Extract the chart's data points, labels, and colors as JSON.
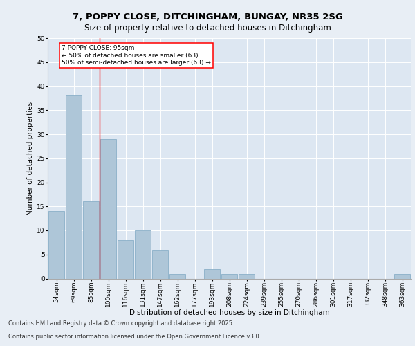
{
  "title_line1": "7, POPPY CLOSE, DITCHINGHAM, BUNGAY, NR35 2SG",
  "title_line2": "Size of property relative to detached houses in Ditchingham",
  "categories": [
    "54sqm",
    "69sqm",
    "85sqm",
    "100sqm",
    "116sqm",
    "131sqm",
    "147sqm",
    "162sqm",
    "177sqm",
    "193sqm",
    "208sqm",
    "224sqm",
    "239sqm",
    "255sqm",
    "270sqm",
    "286sqm",
    "301sqm",
    "317sqm",
    "332sqm",
    "348sqm",
    "363sqm"
  ],
  "values": [
    14,
    38,
    16,
    29,
    8,
    10,
    6,
    1,
    0,
    2,
    1,
    1,
    0,
    0,
    0,
    0,
    0,
    0,
    0,
    0,
    1
  ],
  "bar_color": "#aec6d8",
  "bar_edge_color": "#8aafc8",
  "bar_linewidth": 0.6,
  "vline_x": 2.5,
  "vline_color": "red",
  "vline_linewidth": 1.0,
  "annotation_title": "7 POPPY CLOSE: 95sqm",
  "annotation_line1": "← 50% of detached houses are smaller (63)",
  "annotation_line2": "50% of semi-detached houses are larger (63) →",
  "annotation_box_color": "white",
  "annotation_box_edgecolor": "red",
  "xlabel": "Distribution of detached houses by size in Ditchingham",
  "ylabel": "Number of detached properties",
  "ylim": [
    0,
    50
  ],
  "yticks": [
    0,
    5,
    10,
    15,
    20,
    25,
    30,
    35,
    40,
    45,
    50
  ],
  "background_color": "#e8eef5",
  "plot_background_color": "#dde7f2",
  "grid_color": "#ffffff",
  "footer_line1": "Contains HM Land Registry data © Crown copyright and database right 2025.",
  "footer_line2": "Contains public sector information licensed under the Open Government Licence v3.0.",
  "title_fontsize": 9.5,
  "subtitle_fontsize": 8.5,
  "axis_label_fontsize": 7.5,
  "tick_fontsize": 6.5,
  "footer_fontsize": 6.0,
  "annotation_fontsize": 6.5
}
